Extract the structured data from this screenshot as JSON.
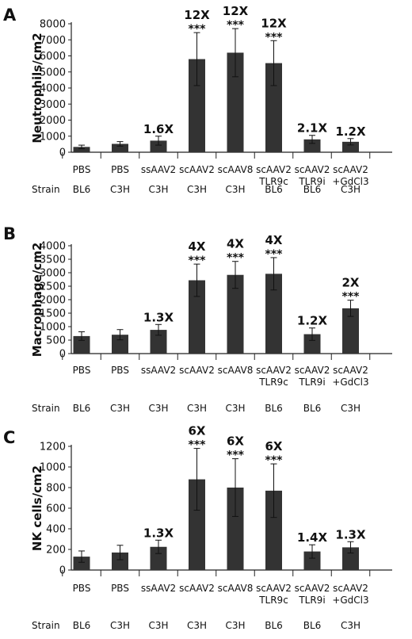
{
  "chart_data": [
    {
      "panel": "A",
      "type": "bar",
      "ylabel": "Neutrophils/cm2",
      "ylim": [
        0,
        8000
      ],
      "yticks": [
        0,
        1000,
        2000,
        3000,
        4000,
        5000,
        6000,
        7000,
        8000
      ],
      "categories": [
        "PBS",
        "PBS",
        "ssAAV2",
        "scAAV2",
        "scAAV8",
        "scAAV2\nTLR9c",
        "scAAV2\nTLR9i",
        "scAAV2\n+GdCl3"
      ],
      "strain_label": "Strain",
      "strains": [
        "BL6",
        "C3H",
        "C3H",
        "C3H",
        "C3H",
        "BL6",
        "BL6",
        "C3H"
      ],
      "values": [
        330,
        520,
        720,
        5800,
        6200,
        5550,
        800,
        650
      ],
      "errors": [
        110,
        140,
        280,
        1650,
        1500,
        1400,
        250,
        200
      ],
      "fold_labels": [
        "",
        "",
        "1.6X",
        "12X",
        "12X",
        "12X",
        "2.1X",
        "1.2X"
      ],
      "significance": [
        "",
        "",
        "",
        "***",
        "***",
        "***",
        "",
        ""
      ],
      "color": "#333333"
    },
    {
      "panel": "B",
      "type": "bar",
      "ylabel": "Macrophage/cm2",
      "ylim": [
        0,
        4000
      ],
      "yticks": [
        0,
        500,
        1000,
        1500,
        2000,
        2500,
        3000,
        3500,
        4000
      ],
      "categories": [
        "PBS",
        "PBS",
        "ssAAV2",
        "scAAV2",
        "scAAV8",
        "scAAV2\nTLR9c",
        "scAAV2\nTLR9i",
        "scAAV2\n+GdCl3"
      ],
      "strain_label": "Strain",
      "strains": [
        "BL6",
        "C3H",
        "C3H",
        "C3H",
        "C3H",
        "BL6",
        "BL6",
        "C3H"
      ],
      "values": [
        650,
        700,
        880,
        2720,
        2920,
        2960,
        720,
        1680
      ],
      "errors": [
        160,
        190,
        200,
        600,
        500,
        600,
        230,
        300
      ],
      "fold_labels": [
        "",
        "",
        "1.3X",
        "4X",
        "4X",
        "4X",
        "1.2X",
        "2X"
      ],
      "significance": [
        "",
        "",
        "",
        "***",
        "***",
        "***",
        "",
        "***"
      ],
      "color": "#333333"
    },
    {
      "panel": "C",
      "type": "bar",
      "ylabel": "NK cells/cm2",
      "ylim": [
        0,
        1200
      ],
      "yticks": [
        0,
        200,
        400,
        600,
        800,
        1000,
        1200
      ],
      "categories": [
        "PBS",
        "PBS",
        "ssAAV2",
        "scAAV2",
        "scAAV8",
        "scAAV2\nTLR9c",
        "scAAV2\nTLR9i",
        "scAAV2\n+GdCl3"
      ],
      "strain_label": "Strain",
      "strains": [
        "BL6",
        "C3H",
        "C3H",
        "C3H",
        "C3H",
        "BL6",
        "BL6",
        "C3H"
      ],
      "values": [
        130,
        170,
        225,
        880,
        800,
        770,
        180,
        220
      ],
      "errors": [
        55,
        70,
        65,
        300,
        280,
        260,
        65,
        55
      ],
      "fold_labels": [
        "",
        "",
        "1.3X",
        "6X",
        "6X",
        "6X",
        "1.4X",
        "1.3X"
      ],
      "significance": [
        "",
        "",
        "",
        "***",
        "***",
        "***",
        "",
        ""
      ],
      "color": "#333333"
    }
  ]
}
